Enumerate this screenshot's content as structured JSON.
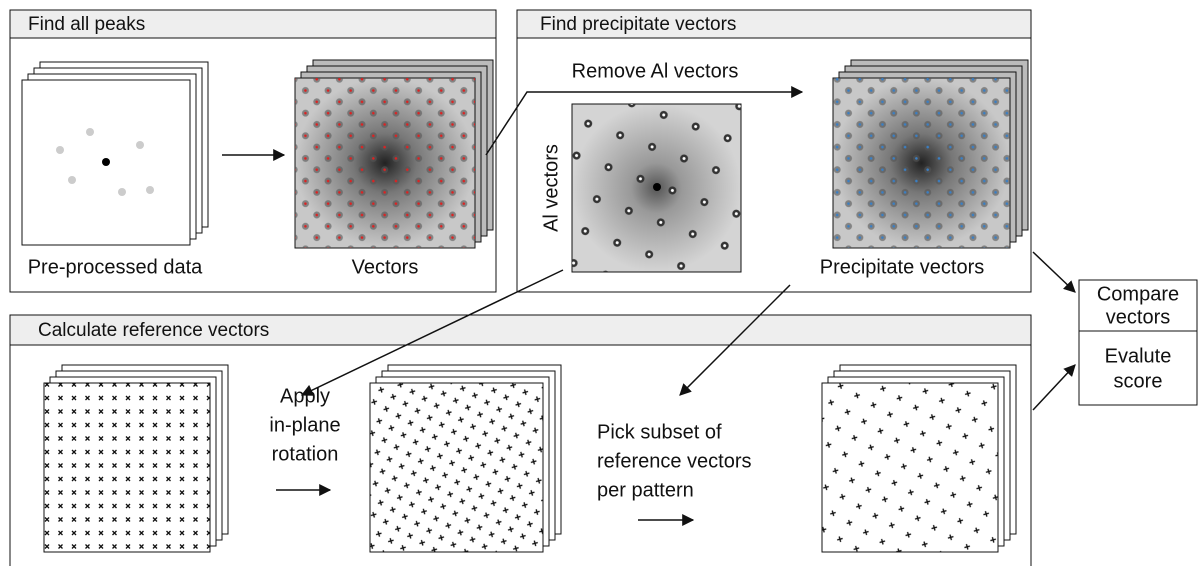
{
  "panels": [
    {
      "title": "Find all peaks",
      "labels": [
        "Pre-processed data",
        "Vectors"
      ]
    },
    {
      "title": "Find precipitate vectors",
      "labels": [
        "Remove Al vectors",
        "Al vectors",
        "Precipitate vectors"
      ]
    },
    {
      "title": "Calculate reference vectors",
      "steps": [
        [
          "Apply",
          "in-plane",
          "rotation"
        ],
        [
          "Pick subset of",
          "reference vectors",
          "per pattern"
        ]
      ]
    }
  ],
  "compare": {
    "top": [
      "Compare",
      "vectors"
    ],
    "bottom": [
      "Evalute",
      "score"
    ]
  }
}
